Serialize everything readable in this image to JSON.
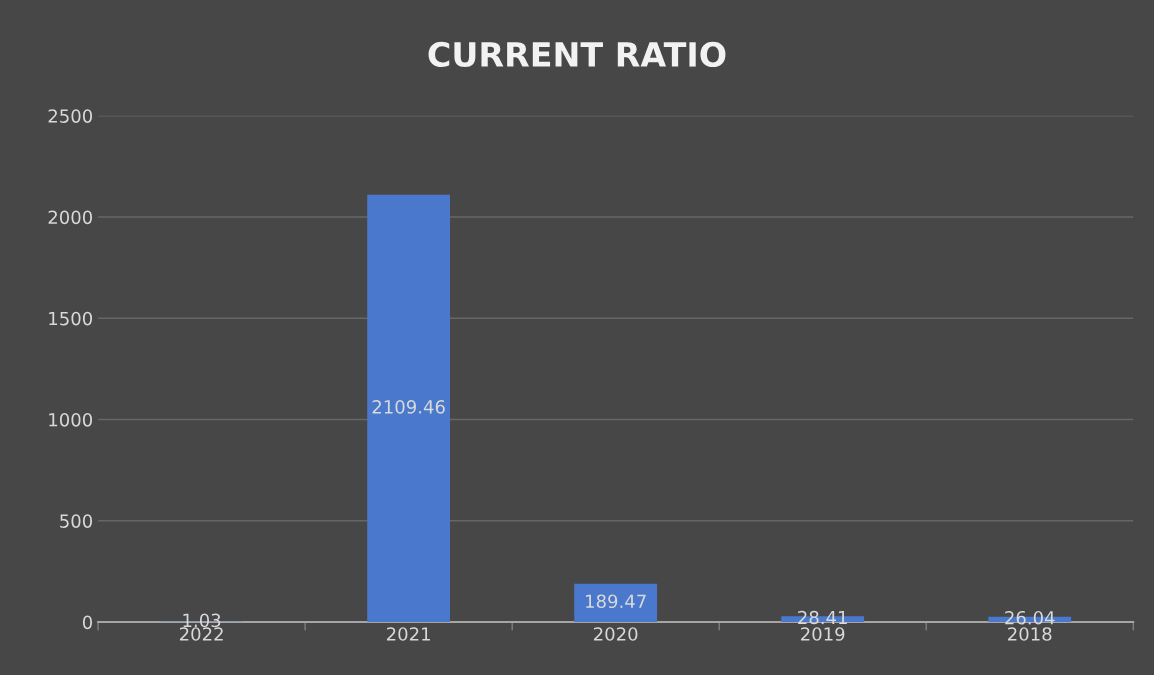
{
  "chart_data": {
    "type": "bar",
    "title": "CURRENT RATIO",
    "categories": [
      "2022",
      "2021",
      "2020",
      "2019",
      "2018"
    ],
    "values": [
      1.03,
      2109.46,
      189.47,
      28.41,
      26.04
    ],
    "color": "#4a78cc",
    "ylim": [
      0,
      2500
    ],
    "yticks": [
      0,
      500,
      1000,
      1500,
      2000,
      2500
    ],
    "grid": "y",
    "data_labels": true,
    "legend": false
  }
}
